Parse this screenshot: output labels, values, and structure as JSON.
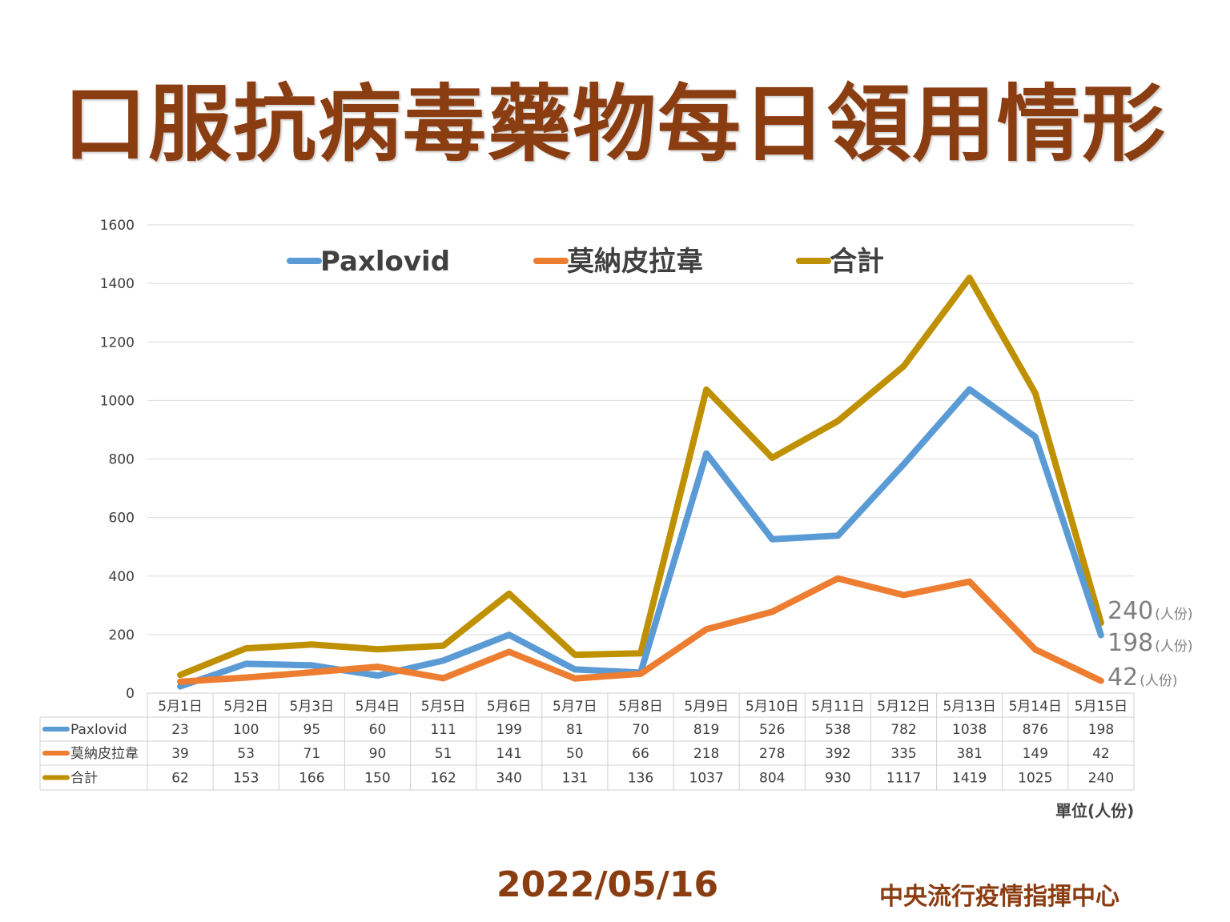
{
  "title": "口服抗病毒藥物每日領用情形",
  "date": "2022/05/16",
  "organization": "中央流行疫情指揮中心",
  "unit_label": "單位(人份)",
  "colors": {
    "title": "#8b3d12",
    "paxlovid": "#5b9bd5",
    "molnupiravir": "#ed7d31",
    "total": "#bf9000"
  },
  "chart_data": {
    "type": "line",
    "categories": [
      "5月1日",
      "5月2日",
      "5月3日",
      "5月4日",
      "5月5日",
      "5月6日",
      "5月7日",
      "5月8日",
      "5月9日",
      "5月10日",
      "5月11日",
      "5月12日",
      "5月13日",
      "5月14日",
      "5月15日"
    ],
    "series": [
      {
        "name": "Paxlovid",
        "color": "#5b9bd5",
        "values": [
          23,
          100,
          95,
          60,
          111,
          199,
          81,
          70,
          819,
          526,
          538,
          782,
          1038,
          876,
          198
        ]
      },
      {
        "name": "莫納皮拉韋",
        "color": "#ed7d31",
        "values": [
          39,
          53,
          71,
          90,
          51,
          141,
          50,
          66,
          218,
          278,
          392,
          335,
          381,
          149,
          42
        ]
      },
      {
        "name": "合計",
        "color": "#bf9000",
        "values": [
          62,
          153,
          166,
          150,
          162,
          340,
          131,
          136,
          1037,
          804,
          930,
          1117,
          1419,
          1025,
          240
        ]
      }
    ],
    "ylim": [
      0,
      1600
    ],
    "yticks": [
      0,
      200,
      400,
      600,
      800,
      1000,
      1200,
      1400,
      1600
    ],
    "grid": true,
    "legend": "top",
    "end_labels": [
      {
        "value": "240",
        "unit": "(人份)",
        "color": "#bf9000"
      },
      {
        "value": "198",
        "unit": "(人份)",
        "color": "#5b9bd5"
      },
      {
        "value": "42",
        "unit": "(人份)",
        "color": "#ed7d31"
      }
    ],
    "data_table": true
  }
}
